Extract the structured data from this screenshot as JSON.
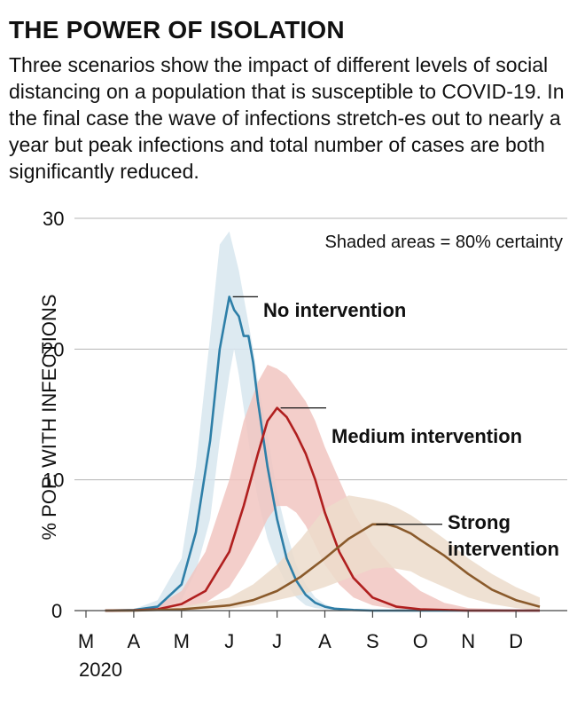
{
  "header": {
    "title": "THE POWER OF ISOLATION",
    "subtitle": "Three scenarios show the impact of different levels of social distancing on a population that is susceptible to COVID-19. In the final case the wave of infections stretch-es out to nearly a year but peak infections and total number of cases are both significantly reduced."
  },
  "chart_data": {
    "type": "line",
    "title": "THE POWER OF ISOLATION",
    "ylabel": "% POP. WITH INFECTIONS",
    "xlabel": "",
    "ylim": [
      0,
      30
    ],
    "y_ticks": [
      "0",
      "10",
      "20",
      "30"
    ],
    "x_ticks": [
      "M",
      "A",
      "M",
      "J",
      "J",
      "A",
      "S",
      "O",
      "N",
      "D"
    ],
    "year_label": "2020",
    "note": "Shaded areas = 80% certainty",
    "x_unit": "month (3 = Mar, 12 = Dec)",
    "grid": true,
    "series": [
      {
        "name": "No intervention",
        "label_lines": [
          "No intervention"
        ],
        "color": "#2e7fa8",
        "band_color": "#d7e6ee",
        "x": [
          3.4,
          4.0,
          4.5,
          5.0,
          5.3,
          5.6,
          5.8,
          6.0,
          6.1,
          6.2,
          6.3,
          6.4,
          6.5,
          6.6,
          6.8,
          7.0,
          7.2,
          7.4,
          7.6,
          7.8,
          8.0,
          8.2,
          8.6,
          9.0,
          12.5
        ],
        "values": [
          0,
          0.05,
          0.3,
          2.0,
          6.0,
          13.0,
          20.0,
          24.0,
          23.0,
          22.5,
          21.0,
          21.0,
          19.0,
          16.0,
          11.0,
          7.0,
          4.0,
          2.3,
          1.2,
          0.6,
          0.3,
          0.15,
          0.05,
          0,
          0
        ],
        "upper": [
          0,
          0.1,
          0.8,
          4.0,
          11.0,
          21.0,
          28.0,
          29.0,
          27.5,
          26.0,
          24.0,
          22.0,
          20.0,
          17.5,
          13.5,
          9.0,
          6.0,
          3.5,
          2.0,
          1.0,
          0.5,
          0.2,
          0.05,
          0,
          0
        ],
        "lower": [
          0,
          0.02,
          0.1,
          0.8,
          3.0,
          7.0,
          13.0,
          18.0,
          20.0,
          18.0,
          15.5,
          13.0,
          10.5,
          8.5,
          5.5,
          3.5,
          2.0,
          1.0,
          0.4,
          0.2,
          0.1,
          0,
          0,
          0,
          0
        ]
      },
      {
        "name": "Medium intervention",
        "label_lines": [
          "Medium intervention"
        ],
        "color": "#b01f1f",
        "band_color": "#f1c5c1",
        "x": [
          3.4,
          4.0,
          4.5,
          5.0,
          5.5,
          6.0,
          6.3,
          6.6,
          6.8,
          7.0,
          7.2,
          7.4,
          7.6,
          7.8,
          8.0,
          8.3,
          8.6,
          9.0,
          9.5,
          10.0,
          10.5,
          11.0,
          12.5
        ],
        "values": [
          0,
          0.02,
          0.1,
          0.5,
          1.5,
          4.5,
          8.0,
          12.0,
          14.5,
          15.5,
          14.8,
          13.5,
          12.0,
          10.0,
          7.5,
          4.5,
          2.5,
          1.0,
          0.3,
          0.1,
          0.05,
          0,
          0
        ],
        "upper": [
          0,
          0.1,
          0.4,
          1.5,
          4.5,
          10.0,
          14.5,
          17.5,
          18.8,
          18.5,
          18.0,
          17.0,
          16.0,
          14.5,
          12.5,
          10.0,
          7.5,
          5.0,
          3.0,
          1.5,
          0.6,
          0.2,
          0
        ],
        "lower": [
          0,
          0,
          0.02,
          0.2,
          0.6,
          1.8,
          3.5,
          5.5,
          7.0,
          8.0,
          8.0,
          7.5,
          6.5,
          5.0,
          3.5,
          2.0,
          1.0,
          0.4,
          0.1,
          0,
          0,
          0,
          0
        ]
      },
      {
        "name": "Strong intervention",
        "label_lines": [
          "Strong",
          "intervention"
        ],
        "color": "#8a5a2b",
        "band_color": "#ecdccb",
        "x": [
          3.4,
          4.0,
          5.0,
          6.0,
          6.5,
          7.0,
          7.5,
          8.0,
          8.5,
          9.0,
          9.3,
          9.5,
          9.8,
          10.0,
          10.5,
          11.0,
          11.5,
          12.0,
          12.5,
          12.5
        ],
        "values": [
          0,
          0.01,
          0.1,
          0.4,
          0.8,
          1.5,
          2.6,
          4.0,
          5.5,
          6.6,
          6.6,
          6.4,
          5.9,
          5.4,
          4.2,
          2.8,
          1.6,
          0.8,
          0.3,
          0.3
        ],
        "upper": [
          0,
          0.05,
          0.3,
          1.0,
          2.0,
          3.5,
          5.5,
          7.8,
          8.8,
          8.5,
          8.2,
          7.9,
          7.3,
          6.8,
          5.5,
          4.0,
          2.8,
          1.8,
          1.0,
          1.0
        ],
        "lower": [
          0,
          0,
          0.02,
          0.15,
          0.4,
          0.8,
          1.2,
          1.8,
          2.5,
          3.2,
          3.3,
          3.2,
          3.0,
          2.6,
          1.8,
          1.0,
          0.5,
          0.2,
          0,
          0
        ]
      }
    ]
  }
}
